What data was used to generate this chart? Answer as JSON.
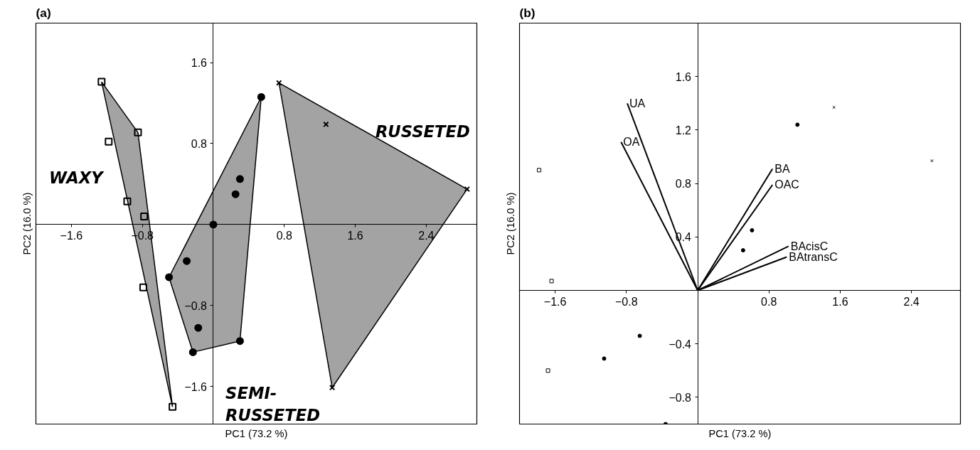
{
  "chart_data": [
    {
      "type": "scatter",
      "title": "(a)",
      "xlabel": "PC1 (73.2 %)",
      "ylabel": "PC2 (16.0 %)",
      "xlim": [
        -2.0,
        2.97
      ],
      "ylim": [
        -1.97,
        1.99
      ],
      "xticks": [
        -1.6,
        -0.8,
        0.8,
        1.6,
        2.4
      ],
      "yticks": [
        -1.6,
        -0.8,
        0.8,
        1.6
      ],
      "annotations": [
        "WAXY",
        "RUSSETED",
        "SEMI-\nRUSSETED"
      ],
      "series": [
        {
          "type": "area",
          "color": "#a3a3a3",
          "x": [
            -1.26,
            -0.85,
            -0.46,
            -1.26
          ],
          "values": [
            1.41,
            0.91,
            -1.8,
            1.41
          ]
        },
        {
          "type": "area",
          "color": "#a3a3a3",
          "x": [
            0.54,
            0.3,
            -0.23,
            -0.5,
            0.54
          ],
          "values": [
            1.26,
            -1.15,
            -1.26,
            -0.52,
            1.26
          ]
        },
        {
          "type": "area",
          "color": "#a3a3a3",
          "x": [
            0.74,
            2.86,
            1.34,
            0.74
          ],
          "values": [
            1.4,
            0.35,
            -1.61,
            1.4
          ]
        },
        {
          "marker": "square",
          "color": "#000000",
          "x": [
            -1.26,
            -0.85,
            -1.18,
            -0.97,
            -0.78,
            -0.79,
            -0.46
          ],
          "values": [
            1.41,
            0.91,
            0.82,
            0.23,
            0.08,
            -0.62,
            -1.8
          ]
        },
        {
          "marker": "circle",
          "color": "#000000",
          "x": [
            0.54,
            0.3,
            0.25,
            0.0,
            -0.3,
            -0.5,
            -0.17,
            -0.23,
            0.3
          ],
          "values": [
            1.26,
            0.45,
            0.3,
            0.0,
            -0.36,
            -0.52,
            -1.02,
            -1.26,
            -1.15
          ]
        },
        {
          "marker": "cross",
          "color": "#000000",
          "x": [
            0.74,
            1.27,
            2.86,
            1.34
          ],
          "values": [
            1.4,
            0.99,
            0.35,
            -1.61
          ]
        }
      ]
    },
    {
      "type": "scatter",
      "title": "(b)",
      "xlabel": "PC1 (73.2 %)",
      "ylabel": "PC2 (16.0 %)",
      "xlim": [
        -2.0,
        2.95
      ],
      "ylim": [
        -1.0,
        2.0
      ],
      "xticks": [
        -1.6,
        -0.8,
        0.8,
        1.6,
        2.4
      ],
      "yticks": [
        -0.8,
        -0.4,
        0.4,
        0.8,
        1.2,
        1.6
      ],
      "series": [
        {
          "marker": "square",
          "color": "#000000",
          "x": [
            -1.78,
            -1.64,
            -1.68
          ],
          "values": [
            0.9,
            0.07,
            -0.6
          ]
        },
        {
          "marker": "circle",
          "color": "#000000",
          "x": [
            1.12,
            0.61,
            0.51,
            -0.65,
            -1.05,
            -0.36
          ],
          "values": [
            1.24,
            0.45,
            0.3,
            -0.34,
            -0.51,
            -1.0
          ]
        },
        {
          "marker": "cross",
          "color": "#000000",
          "x": [
            1.53,
            2.63
          ],
          "values": [
            1.37,
            0.97
          ]
        },
        {
          "type": "line",
          "name": "UA",
          "color": "#000000",
          "x": [
            0,
            -0.79
          ],
          "values": [
            0,
            1.4
          ]
        },
        {
          "type": "line",
          "name": "OA",
          "color": "#000000",
          "x": [
            0,
            -0.86
          ],
          "values": [
            0,
            1.11
          ]
        },
        {
          "type": "line",
          "name": "BA",
          "color": "#000000",
          "x": [
            0,
            0.84
          ],
          "values": [
            0,
            0.91
          ]
        },
        {
          "type": "line",
          "name": "OAC",
          "color": "#000000",
          "x": [
            0,
            0.84
          ],
          "values": [
            0,
            0.79
          ]
        },
        {
          "type": "line",
          "name": "BAcisC",
          "color": "#000000",
          "x": [
            0,
            1.02
          ],
          "values": [
            0,
            0.33
          ]
        },
        {
          "type": "line",
          "name": "BAtransC",
          "color": "#000000",
          "x": [
            0,
            1.0
          ],
          "values": [
            0,
            0.25
          ]
        }
      ]
    }
  ]
}
